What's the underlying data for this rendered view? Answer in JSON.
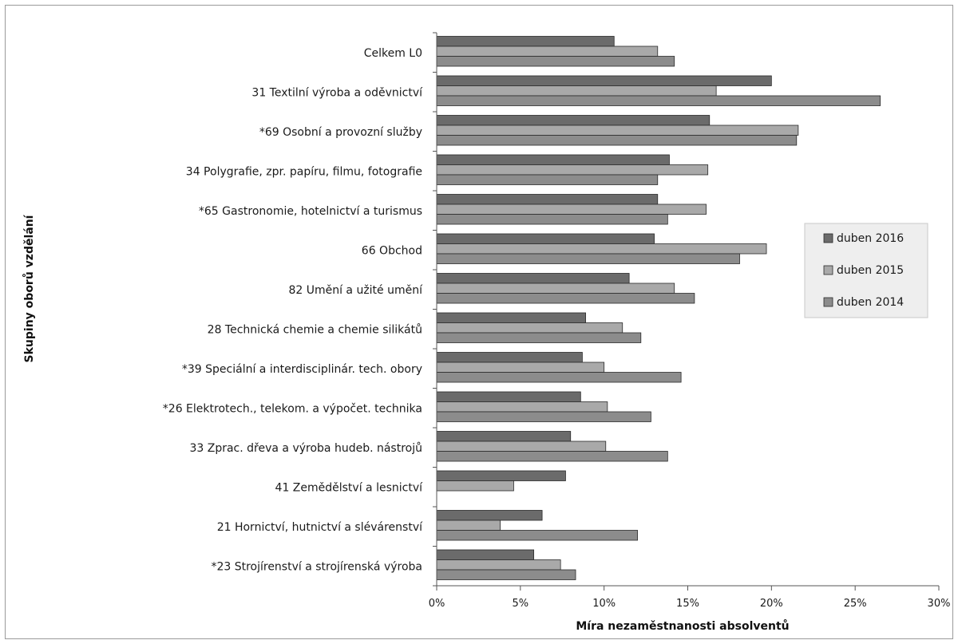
{
  "chart_data": {
    "type": "bar",
    "orientation": "horizontal",
    "title": "",
    "xlabel": "Míra nezaměstnanosti absolventů",
    "ylabel": "Skupiny oborů vzdělání",
    "xlim": [
      0,
      30
    ],
    "x_ticks": [
      "0%",
      "5%",
      "10%",
      "15%",
      "20%",
      "25%",
      "30%"
    ],
    "grid": false,
    "legend_position": "right",
    "categories": [
      "Celkem L0",
      "31 Textilní výroba a oděvnictví",
      "*69 Osobní a provozní služby",
      "34 Polygrafie, zpr. papíru, filmu, fotografie",
      "*65 Gastronomie, hotelnictví a turismus",
      "66 Obchod",
      "82 Umění a užité umění",
      "28 Technická chemie a chemie silikátů",
      "*39 Speciální a interdisciplinár. tech. obory",
      "*26 Elektrotech., telekom. a výpočet. technika",
      "33 Zprac. dřeva a výroba hudeb. nástrojů",
      "41 Zemědělství a lesnictví",
      "21 Hornictví, hutnictví a slévárenství",
      "*23 Strojírenství a strojírenská výroba"
    ],
    "series": [
      {
        "name": "duben 2016",
        "color": "#6b6b6b",
        "values": [
          10.6,
          20.0,
          16.3,
          13.9,
          13.2,
          13.0,
          11.5,
          8.9,
          8.7,
          8.6,
          8.0,
          7.7,
          6.3,
          5.8
        ]
      },
      {
        "name": "duben 2015",
        "color": "#a9a9a9",
        "values": [
          13.2,
          16.7,
          21.6,
          16.2,
          16.1,
          19.7,
          14.2,
          11.1,
          10.0,
          10.2,
          10.1,
          4.6,
          3.8,
          7.4
        ]
      },
      {
        "name": "duben 2014",
        "color": "#8c8c8c",
        "values": [
          14.2,
          26.5,
          21.5,
          13.2,
          13.8,
          18.1,
          15.4,
          12.2,
          14.6,
          12.8,
          13.8,
          null,
          12.0,
          8.3
        ]
      }
    ]
  }
}
